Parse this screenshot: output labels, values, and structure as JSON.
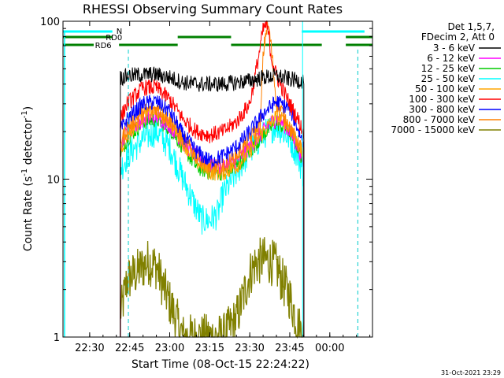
{
  "chart_data": {
    "type": "line",
    "title": "RHESSI Observing Summary Count Rates",
    "xlabel": "Start Time (08-Oct-15 22:24:22)",
    "ylabel": "Count Rate (s⁻¹ detector⁻¹)",
    "ylabel_base": "Count Rate (s",
    "ylabel_sup1": "-1",
    "ylabel_mid": " detector",
    "ylabel_sup2": "-1",
    "ylabel_end": ")",
    "y_scale": "log",
    "ylim": [
      1,
      100
    ],
    "xlim_minutes": [
      -10,
      106
    ],
    "x_ticks": [
      {
        "m": 0,
        "label": "22:30"
      },
      {
        "m": 15,
        "label": "22:45"
      },
      {
        "m": 30,
        "label": "23:00"
      },
      {
        "m": 45,
        "label": "23:15"
      },
      {
        "m": 60,
        "label": "23:30"
      },
      {
        "m": 75,
        "label": "23:45"
      },
      {
        "m": 90,
        "label": "00:00"
      }
    ],
    "y_ticks": [
      {
        "v": 1,
        "label": "1"
      },
      {
        "v": 10,
        "label": "10"
      },
      {
        "v": 100,
        "label": "100"
      }
    ],
    "legend_header": [
      "Det 1,5,7,",
      "FDecim 2, Att 0"
    ],
    "legend_position": "right",
    "timestamp": "31-Oct-2021 23:29",
    "flags": {
      "N_label": "N",
      "RD0_label": "RD0",
      "RD6_label": "RD6",
      "N_segments": [
        [
          -10,
          8.5
        ],
        [
          79.5,
          103
        ]
      ],
      "RD0_segments": [
        [
          -10,
          8.5
        ],
        [
          33,
          53
        ],
        [
          96,
          106
        ]
      ],
      "RD6_segments": [
        [
          -10,
          1.5
        ],
        [
          11,
          33
        ],
        [
          53,
          87
        ],
        [
          96,
          106
        ]
      ]
    },
    "vlines_dashed": [
      14.5,
      100.5
    ],
    "vlines_solid": [
      79.8
    ],
    "series": [
      {
        "name": "3 - 6 keV",
        "color": "#000000",
        "x": [
          12,
          14,
          20,
          25,
          30,
          35,
          40,
          45,
          50,
          55,
          60,
          65,
          70,
          75,
          78,
          80
        ],
        "y": [
          44,
          45,
          46,
          46,
          44,
          41,
          40,
          40,
          40,
          41,
          42,
          44,
          45,
          43,
          42,
          42
        ]
      },
      {
        "name": "6 - 12 keV",
        "color": "#ff00ff",
        "x": [
          12,
          14,
          20,
          25,
          30,
          35,
          40,
          45,
          50,
          55,
          60,
          65,
          68,
          70,
          72,
          75,
          78,
          80
        ],
        "y": [
          17,
          20,
          24,
          25,
          22,
          17,
          14,
          12,
          12,
          13,
          16,
          20,
          23,
          24,
          23,
          20,
          16,
          13
        ]
      },
      {
        "name": "12 - 25 keV",
        "color": "#00cc00",
        "x": [
          12,
          14,
          20,
          25,
          30,
          35,
          40,
          45,
          50,
          55,
          60,
          65,
          70,
          75,
          78,
          80
        ],
        "y": [
          15,
          18,
          23,
          24,
          21,
          16,
          12,
          11,
          11,
          12,
          15,
          19,
          23,
          20,
          16,
          13
        ]
      },
      {
        "name": "25 - 50 keV",
        "color": "#00ffff",
        "x": [
          12,
          14,
          20,
          25,
          30,
          35,
          40,
          42,
          45,
          48,
          50,
          55,
          60,
          65,
          70,
          75,
          78,
          80
        ],
        "y": [
          12,
          14,
          18,
          20,
          16,
          10,
          6.5,
          5.5,
          5.5,
          6,
          8,
          11,
          15,
          19,
          22,
          18,
          14,
          11
        ]
      },
      {
        "name": "50 - 100 keV",
        "color": "#ffa500",
        "x": [
          12,
          14,
          20,
          25,
          30,
          35,
          40,
          45,
          50,
          55,
          60,
          65,
          70,
          75,
          78,
          80
        ],
        "y": [
          16,
          19,
          25,
          27,
          23,
          17,
          13,
          11,
          11,
          12,
          15,
          20,
          25,
          22,
          17,
          14
        ]
      },
      {
        "name": "100 - 300 keV",
        "color": "#ff0000",
        "x": [
          12,
          14,
          20,
          25,
          30,
          35,
          40,
          45,
          50,
          55,
          60,
          62,
          64,
          65,
          66,
          67,
          68,
          70,
          72,
          75,
          78,
          80
        ],
        "y": [
          25,
          30,
          38,
          38,
          32,
          24,
          20,
          19,
          20,
          23,
          30,
          45,
          70,
          88,
          95,
          85,
          60,
          45,
          38,
          30,
          24,
          20
        ]
      },
      {
        "name": "300 - 800 keV",
        "color": "#0000ff",
        "x": [
          12,
          14,
          20,
          25,
          30,
          35,
          40,
          45,
          50,
          55,
          60,
          65,
          70,
          75,
          78,
          80
        ],
        "y": [
          21,
          24,
          30,
          31,
          27,
          19,
          15,
          13,
          14,
          16,
          20,
          26,
          31,
          28,
          21,
          17
        ]
      },
      {
        "name": "800 - 7000 keV",
        "color": "#ff8000",
        "x": [
          12,
          14,
          20,
          25,
          30,
          35,
          40,
          45,
          50,
          55,
          60,
          64,
          65,
          66,
          67,
          68,
          70,
          72,
          75,
          78,
          80
        ],
        "y": [
          18,
          21,
          27,
          28,
          24,
          18,
          14,
          12,
          12,
          14,
          18,
          22,
          60,
          85,
          95,
          70,
          30,
          27,
          21,
          17,
          15
        ]
      },
      {
        "name": "7000 - 15000 keV",
        "color": "#808000",
        "x": [
          12,
          14,
          18,
          22,
          25,
          28,
          31,
          35,
          50,
          55,
          58,
          60,
          62,
          65,
          68,
          70,
          72,
          75,
          78,
          80
        ],
        "y": [
          1.5,
          2.3,
          2.6,
          3.0,
          2.8,
          2.0,
          1.5,
          1.0,
          1.0,
          1.3,
          1.9,
          2.5,
          2.9,
          3.1,
          3.0,
          2.8,
          2.3,
          1.8,
          1.2,
          1.0
        ]
      }
    ]
  }
}
